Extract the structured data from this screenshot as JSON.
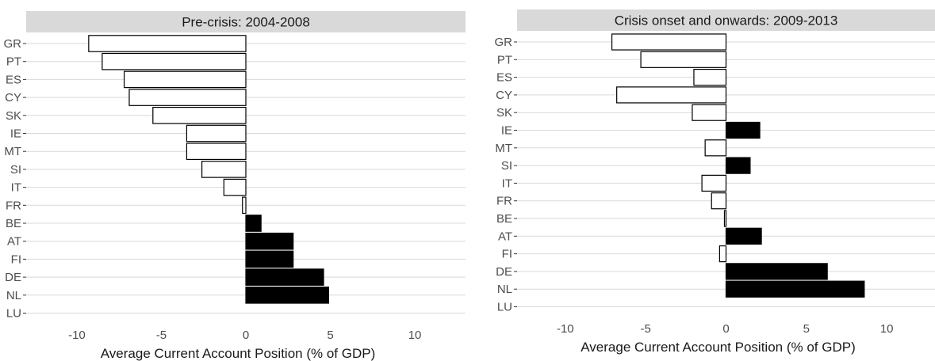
{
  "chart_data": [
    {
      "type": "bar",
      "orientation": "horizontal",
      "title": "Pre-crisis: 2004-2008",
      "xlabel": "Average Current Account Position (% of GDP)",
      "ylabel": "",
      "xlim": [
        -13,
        13
      ],
      "xticks": [
        -10,
        -5,
        0,
        5,
        10
      ],
      "grid": true,
      "fill_rule": "negative values white, positive values black",
      "colors": {
        "negative": "#ffffff",
        "positive": "#000000",
        "strip": "#d9d9d9"
      },
      "categories": [
        "GR",
        "PT",
        "ES",
        "CY",
        "SK",
        "IE",
        "MT",
        "SI",
        "IT",
        "FR",
        "BE",
        "AT",
        "FI",
        "DE",
        "NL",
        "LU"
      ],
      "values": [
        -9.3,
        -8.5,
        -7.2,
        -6.9,
        -5.5,
        -3.5,
        -3.5,
        -2.6,
        -1.3,
        -0.2,
        0.9,
        2.8,
        2.8,
        4.6,
        4.9,
        null
      ]
    },
    {
      "type": "bar",
      "orientation": "horizontal",
      "title": "Crisis onset and onwards: 2009-2013",
      "xlabel": "Average Current Account Position (% of GDP)",
      "ylabel": "",
      "xlim": [
        -13,
        13
      ],
      "xticks": [
        -10,
        -5,
        0,
        5,
        10
      ],
      "grid": true,
      "fill_rule": "negative values white, positive values black",
      "colors": {
        "negative": "#ffffff",
        "positive": "#000000",
        "strip": "#d9d9d9"
      },
      "categories": [
        "GR",
        "PT",
        "ES",
        "CY",
        "SK",
        "IE",
        "MT",
        "SI",
        "IT",
        "FR",
        "BE",
        "AT",
        "FI",
        "DE",
        "NL",
        "LU"
      ],
      "values": [
        -7.1,
        -5.3,
        -2.0,
        -6.8,
        -2.1,
        2.1,
        -1.3,
        1.5,
        -1.5,
        -0.9,
        -0.1,
        2.2,
        -0.4,
        6.3,
        8.6,
        null
      ]
    }
  ]
}
